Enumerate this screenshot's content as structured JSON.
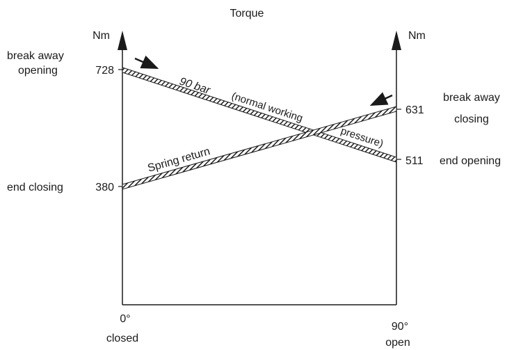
{
  "title": "Torque",
  "left_axis": {
    "unit": "Nm",
    "break_away_label": [
      "break away",
      "opening"
    ],
    "end_label": "end closing",
    "values": {
      "top": "728",
      "bottom": "380"
    }
  },
  "right_axis": {
    "unit": "Nm",
    "break_away_label": [
      "break away",
      "closing"
    ],
    "end_label": "end opening",
    "values": {
      "top": "631",
      "bottom": "511"
    }
  },
  "x_axis": {
    "left": {
      "angle": "0°",
      "state": "closed"
    },
    "right": {
      "angle": "90°",
      "state": "open"
    }
  },
  "lines": {
    "pressure": {
      "label_main": "90 bar",
      "label_sub1": "(normal working",
      "label_sub2": "pressure)",
      "from_value": 728,
      "to_value": 511
    },
    "spring": {
      "label": "Spring return",
      "from_value": 380,
      "to_value": 631
    }
  },
  "colors": {
    "ink": "#1a1a1a",
    "hatch": "#1a1a1a",
    "background": "#ffffff"
  }
}
